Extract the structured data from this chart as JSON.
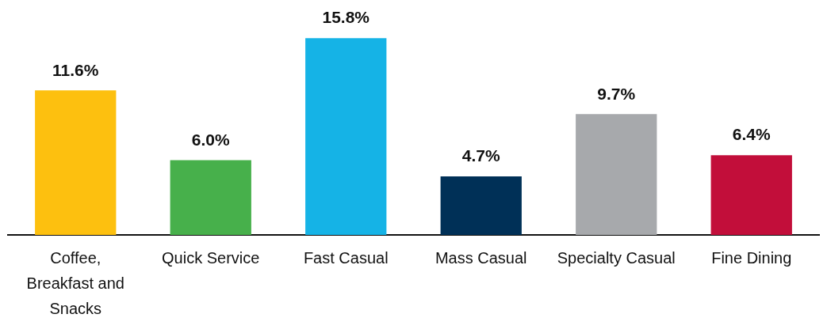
{
  "chart_data": {
    "type": "bar",
    "categories": [
      "Coffee, Breakfast and Snacks",
      "Quick Service",
      "Fast Casual",
      "Mass Casual",
      "Specialty Casual",
      "Fine Dining"
    ],
    "values": [
      11.6,
      6.0,
      15.8,
      4.7,
      9.7,
      6.4
    ],
    "value_labels": [
      "11.6%",
      "6.0%",
      "15.8%",
      "4.7%",
      "9.7%",
      "6.4%"
    ],
    "colors": [
      "#fdc00f",
      "#47b04b",
      "#15b3e6",
      "#003057",
      "#a7a9ac",
      "#c20e3a"
    ],
    "grid": false,
    "legend": false
  }
}
